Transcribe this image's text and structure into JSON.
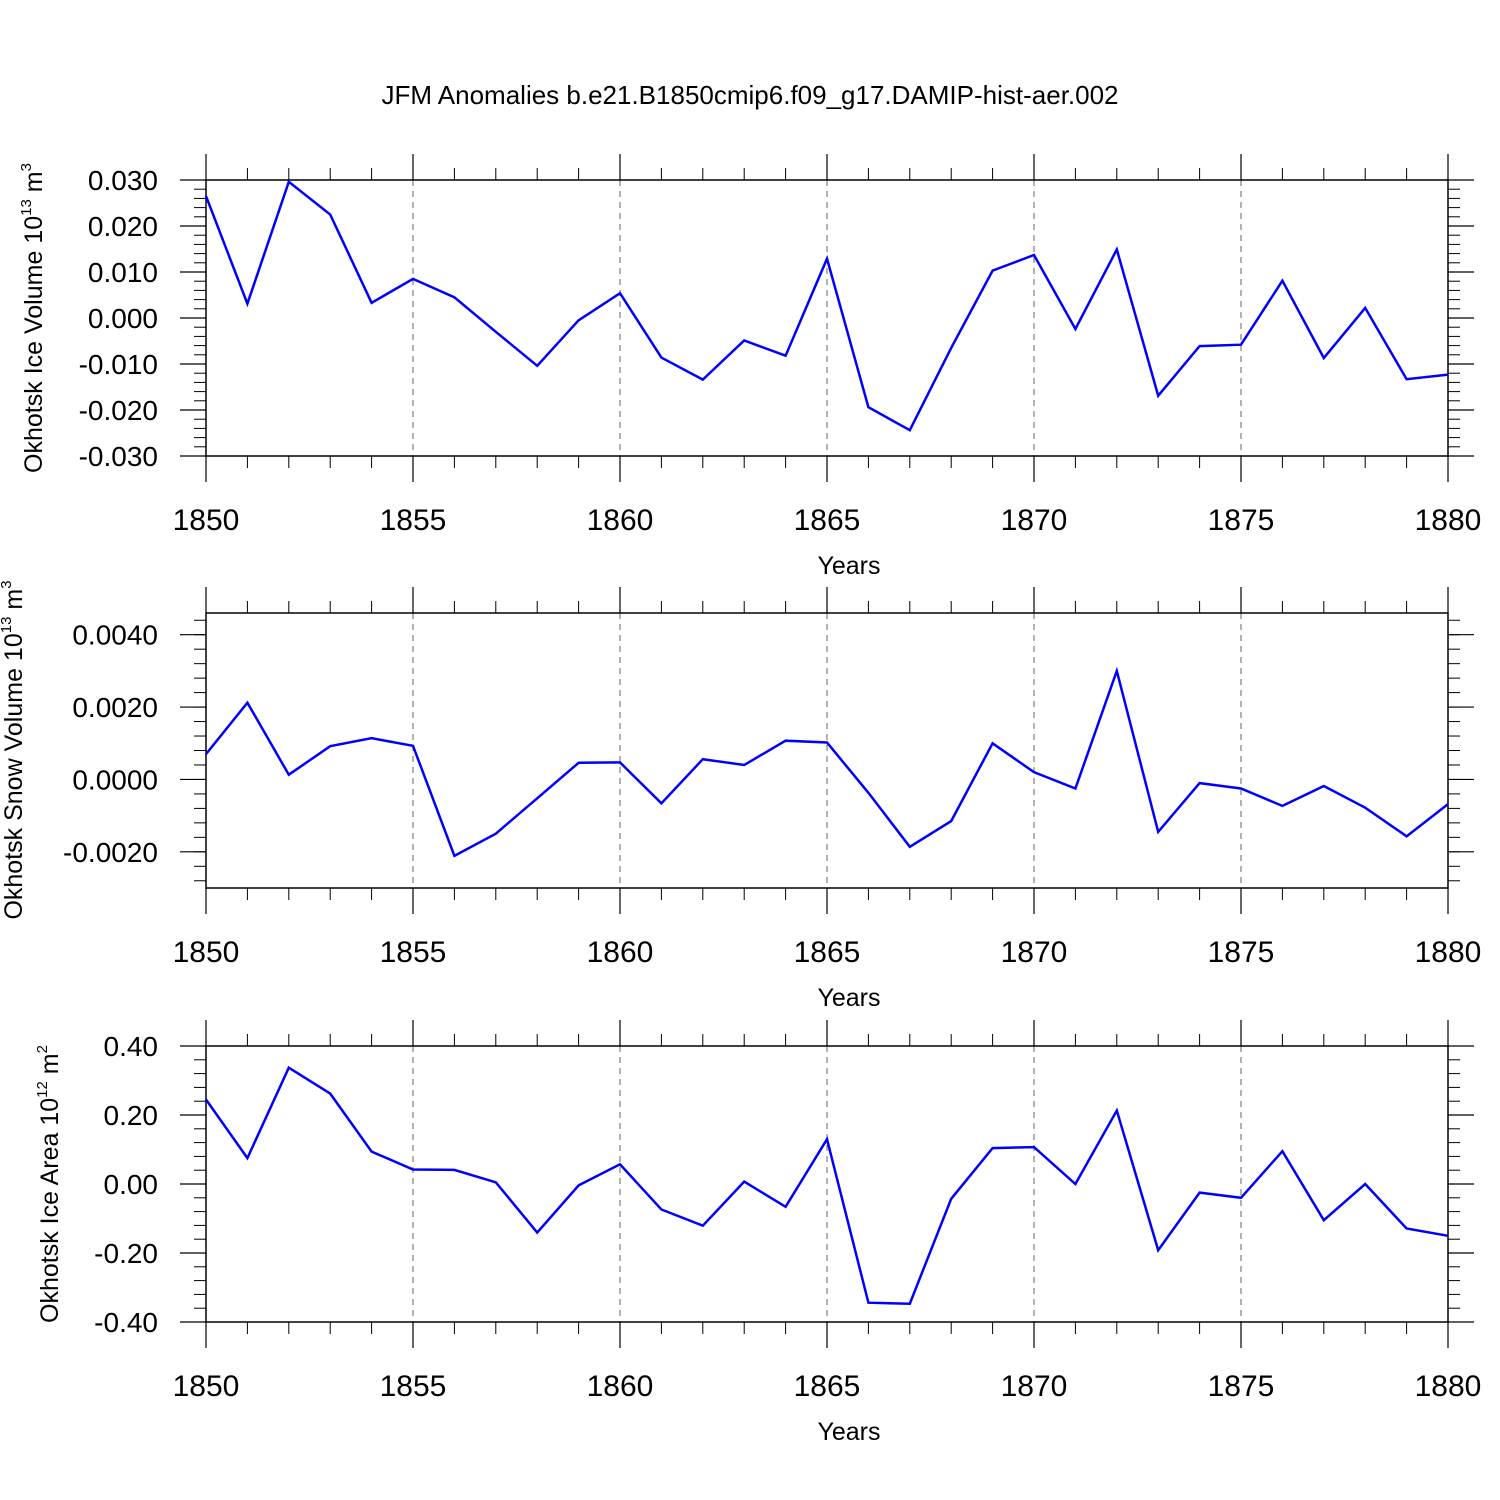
{
  "title": "JFM Anomalies b.e21.B1850cmip6.f09_g17.DAMIP-hist-aer.002",
  "chart_data": [
    {
      "type": "line",
      "title": "",
      "xlabel": "Years",
      "ylabel": {
        "prefix": "Okhotsk Ice Volume 10",
        "exp": "13",
        "unit": " m",
        "unit_exp": "3"
      },
      "xlim": [
        1850,
        1880
      ],
      "ylim": [
        -0.03,
        0.03
      ],
      "yticks": [
        "-0.030",
        "-0.020",
        "-0.010",
        "0.000",
        "0.010",
        "0.020",
        "0.030"
      ],
      "ytick_values": [
        -0.03,
        -0.02,
        -0.01,
        0.0,
        0.01,
        0.02,
        0.03
      ],
      "xticks": [
        "1850",
        "1855",
        "1860",
        "1865",
        "1870",
        "1875",
        "1880"
      ],
      "grid": "vertical dashed at major x ticks",
      "line_color": "#0000ff",
      "series": [
        {
          "x": [
            1850,
            1851,
            1852,
            1853,
            1854,
            1855,
            1856,
            1857,
            1858,
            1859,
            1860,
            1861,
            1862,
            1863,
            1864,
            1865,
            1866,
            1867,
            1868,
            1869,
            1870,
            1871,
            1872,
            1873,
            1874,
            1875,
            1876,
            1877,
            1878,
            1879,
            1880
          ],
          "values": [
            0.0265,
            0.0031,
            0.0296,
            0.0225,
            0.0033,
            0.0085,
            0.0045,
            -0.003,
            -0.0104,
            -0.0005,
            0.0054,
            -0.0086,
            -0.0134,
            -0.0049,
            -0.0082,
            0.0129,
            -0.0194,
            -0.0244,
            -0.0065,
            0.0103,
            0.0137,
            -0.0024,
            0.0149,
            -0.0169,
            -0.0061,
            -0.0058,
            0.0081,
            -0.0087,
            0.0022,
            -0.0133,
            -0.0123
          ]
        }
      ]
    },
    {
      "type": "line",
      "title": "",
      "xlabel": "Years",
      "ylabel": {
        "prefix": "Okhotsk Snow Volume 10",
        "exp": "13",
        "unit": " m",
        "unit_exp": "3"
      },
      "xlim": [
        1850,
        1880
      ],
      "ylim": [
        -0.003,
        0.0046
      ],
      "yticks": [
        "-0.0020",
        "0.0000",
        "0.0020",
        "0.0040"
      ],
      "ytick_values": [
        -0.002,
        0.0,
        0.002,
        0.004
      ],
      "xticks": [
        "1850",
        "1855",
        "1860",
        "1865",
        "1870",
        "1875",
        "1880"
      ],
      "grid": "vertical dashed at major x ticks",
      "line_color": "#0000ff",
      "series": [
        {
          "x": [
            1850,
            1851,
            1852,
            1853,
            1854,
            1855,
            1856,
            1857,
            1858,
            1859,
            1860,
            1861,
            1862,
            1863,
            1864,
            1865,
            1866,
            1867,
            1868,
            1869,
            1870,
            1871,
            1872,
            1873,
            1874,
            1875,
            1876,
            1877,
            1878,
            1879,
            1880
          ],
          "values": [
            0.0007,
            0.00212,
            0.00013,
            0.00092,
            0.00114,
            0.00093,
            -0.00211,
            -0.0015,
            -0.00052,
            0.00046,
            0.00047,
            -0.00066,
            0.00056,
            0.0004,
            0.00107,
            0.00102,
            -0.00037,
            -0.00186,
            -0.00115,
            0.001,
            0.0002,
            -0.00025,
            0.003,
            -0.00145,
            -0.0001,
            -0.00025,
            -0.00073,
            -0.00018,
            -0.00078,
            -0.00157,
            -0.00068
          ]
        }
      ]
    },
    {
      "type": "line",
      "title": "",
      "xlabel": "Years",
      "ylabel": {
        "prefix": "Okhotsk Ice Area 10",
        "exp": "12",
        "unit": " m",
        "unit_exp": "2"
      },
      "xlim": [
        1850,
        1880
      ],
      "ylim": [
        -0.4,
        0.4
      ],
      "yticks": [
        "-0.40",
        "-0.20",
        "0.00",
        "0.20",
        "0.40"
      ],
      "ytick_values": [
        -0.4,
        -0.2,
        0.0,
        0.2,
        0.4
      ],
      "xticks": [
        "1850",
        "1855",
        "1860",
        "1865",
        "1870",
        "1875",
        "1880"
      ],
      "grid": "vertical dashed at major x ticks",
      "line_color": "#0000ff",
      "series": [
        {
          "x": [
            1850,
            1851,
            1852,
            1853,
            1854,
            1855,
            1856,
            1857,
            1858,
            1859,
            1860,
            1861,
            1862,
            1863,
            1864,
            1865,
            1866,
            1867,
            1868,
            1869,
            1870,
            1871,
            1872,
            1873,
            1874,
            1875,
            1876,
            1877,
            1878,
            1879,
            1880
          ],
          "values": [
            0.245,
            0.075,
            0.337,
            0.262,
            0.094,
            0.042,
            0.041,
            0.005,
            -0.141,
            -0.004,
            0.057,
            -0.074,
            -0.121,
            0.007,
            -0.066,
            0.13,
            -0.344,
            -0.347,
            -0.043,
            0.104,
            0.107,
            0.0,
            0.213,
            -0.192,
            -0.025,
            -0.04,
            0.095,
            -0.105,
            0.0,
            -0.129,
            -0.15
          ]
        }
      ]
    }
  ]
}
